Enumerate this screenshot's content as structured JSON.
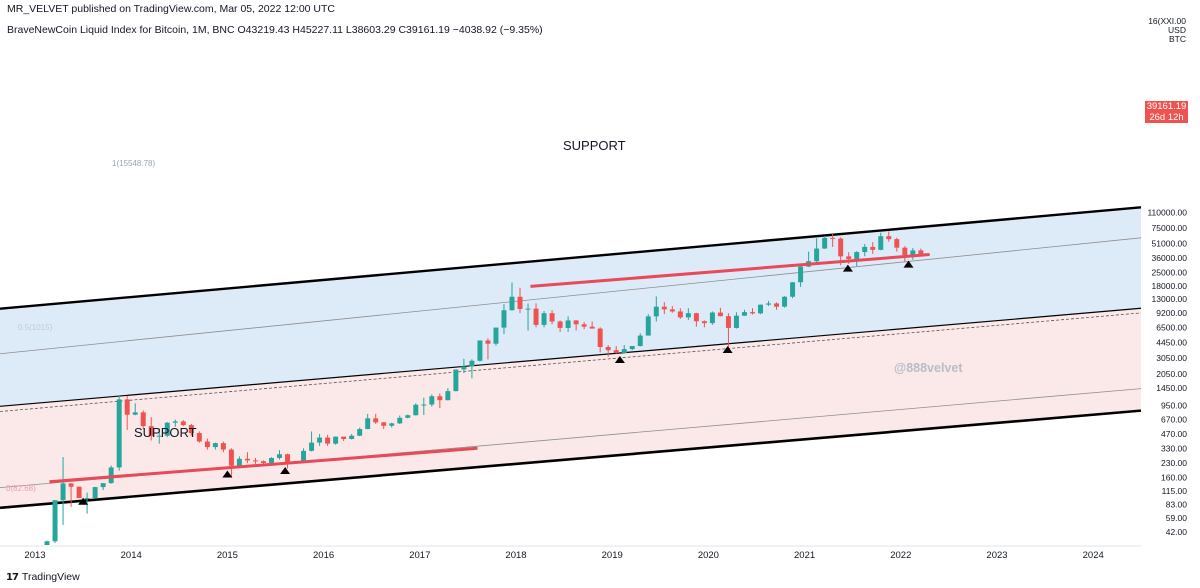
{
  "publisher_line": "MR_VELVET published on TradingView.com, Mar 05, 2022 12:00 UTC",
  "symbol_line": "BraveNewCoin Liquid Index for Bitcoin, 1M, BNC  O43219.43  H45227.11  L38603.29  C39161.19  −4038.92 (−9.35%)",
  "axis_unit": [
    "16(XXI.00",
    "USD",
    "BTC"
  ],
  "price_label": "39161.19",
  "countdown_label": "26d 12h",
  "footer_logo": "TradingView",
  "annotations": {
    "support_upper": "SUPPORT",
    "support_lower": "SUPPORT",
    "watermark": "@888velvet",
    "fib_upper": "1(15548.78)",
    "fib_mid": "0.5(1015)",
    "fib_low": "0(82.68)"
  },
  "colors": {
    "up": "#26a69a",
    "down": "#ef5350",
    "support_line": "#e84a5a",
    "upper_band": "#ddeaf8",
    "lower_band": "#fbe9ea",
    "channel_line": "#000000"
  },
  "chart_data": {
    "type": "candlestick",
    "title": "BraveNewCoin Liquid Index for Bitcoin, 1M, BNC",
    "scale": "log",
    "y_ticks": [
      42,
      59,
      83,
      115,
      160,
      230,
      330,
      470,
      670,
      950,
      1450,
      2050,
      3050,
      4450,
      6500,
      9200,
      13000,
      18000,
      25000,
      36000,
      51000,
      75000,
      110000
    ],
    "y_tick_labels": [
      "42.00",
      "59.00",
      "83.00",
      "115.00",
      "160.00",
      "230.00",
      "330.00",
      "470.00",
      "670.00",
      "950.00",
      "1450.00",
      "2050.00",
      "3050.00",
      "4450.00",
      "6500.00",
      "9200.00",
      "13000.00",
      "18000.00",
      "25000.00",
      "36000.00",
      "51000.00",
      "75000.00",
      "110000.00"
    ],
    "x_labels": [
      "2013",
      "2014",
      "2015",
      "2016",
      "2017",
      "2018",
      "2019",
      "2020",
      "2021",
      "2022",
      "2023",
      "2024"
    ],
    "x_label_years": [
      2013,
      2014,
      2015,
      2016,
      2017,
      2018,
      2019,
      2020,
      2021,
      2022,
      2023,
      2024
    ],
    "candle_start": 2013.0,
    "candles": [
      [
        13.3,
        20.5,
        13.0,
        20.4
      ],
      [
        20.4,
        34.0,
        19.5,
        33.4
      ],
      [
        33.4,
        92.0,
        32.0,
        92.0
      ],
      [
        92.0,
        266.0,
        50.0,
        139.0
      ],
      [
        139.0,
        140.0,
        78.0,
        128.0
      ],
      [
        128.0,
        129.0,
        100.0,
        97.0
      ],
      [
        97.0,
        111.0,
        66.0,
        97.0
      ],
      [
        97.0,
        128.0,
        96.0,
        127.0
      ],
      [
        127.0,
        140.0,
        118.0,
        140.0
      ],
      [
        140.0,
        216.0,
        138.0,
        206.0
      ],
      [
        206.0,
        1200.0,
        190.0,
        1100.0
      ],
      [
        1100.0,
        1200.0,
        520.0,
        755.0
      ],
      [
        755.0,
        1000.0,
        745.0,
        800.0
      ],
      [
        800.0,
        840.0,
        530.0,
        570.0
      ],
      [
        570.0,
        710.0,
        400.0,
        445.0
      ],
      [
        445.0,
        540.0,
        370.0,
        450.0
      ],
      [
        450.0,
        630.0,
        435.0,
        620.0
      ],
      [
        620.0,
        670.0,
        560.0,
        640.0
      ],
      [
        640.0,
        660.0,
        570.0,
        585.0
      ],
      [
        585.0,
        600.0,
        450.0,
        480.0
      ],
      [
        480.0,
        500.0,
        380.0,
        390.0
      ],
      [
        390.0,
        420.0,
        320.0,
        340.0
      ],
      [
        340.0,
        380.0,
        320.0,
        375.0
      ],
      [
        375.0,
        390.0,
        300.0,
        320.0
      ],
      [
        320.0,
        330.0,
        160.0,
        215.0
      ],
      [
        215.0,
        270.0,
        210.0,
        255.0
      ],
      [
        255.0,
        300.0,
        230.0,
        245.0
      ],
      [
        245.0,
        260.0,
        225.0,
        240.0
      ],
      [
        240.0,
        245.0,
        225.0,
        230.0
      ],
      [
        230.0,
        265.0,
        220.0,
        260.0
      ],
      [
        260.0,
        315.0,
        250.0,
        285.0
      ],
      [
        285.0,
        290.0,
        200.0,
        230.0
      ],
      [
        230.0,
        240.0,
        225.0,
        236.0
      ],
      [
        236.0,
        330.0,
        235.0,
        310.0
      ],
      [
        310.0,
        500.0,
        305.0,
        380.0
      ],
      [
        380.0,
        470.0,
        350.0,
        430.0
      ],
      [
        430.0,
        460.0,
        350.0,
        370.0
      ],
      [
        370.0,
        440.0,
        360.0,
        440.0
      ],
      [
        440.0,
        440.0,
        395.0,
        415.0
      ],
      [
        415.0,
        470.0,
        410.0,
        450.0
      ],
      [
        450.0,
        550.0,
        445.0,
        530.0
      ],
      [
        530.0,
        770.0,
        530.0,
        690.0
      ],
      [
        690.0,
        770.0,
        600.0,
        625.0
      ],
      [
        625.0,
        630.0,
        530.0,
        575.0
      ],
      [
        575.0,
        620.0,
        550.0,
        610.0
      ],
      [
        610.0,
        740.0,
        600.0,
        700.0
      ],
      [
        700.0,
        760.0,
        690.0,
        745.0
      ],
      [
        745.0,
        1000.0,
        740.0,
        965.0
      ],
      [
        965.0,
        1150.0,
        750.0,
        970.0
      ],
      [
        970.0,
        1250.0,
        920.0,
        1190.0
      ],
      [
        1190.0,
        1270.0,
        890.0,
        1080.0
      ],
      [
        1080.0,
        1450.0,
        1070.0,
        1350.0
      ],
      [
        1350.0,
        2300.0,
        1340.0,
        2300.0
      ],
      [
        2300.0,
        3000.0,
        2100.0,
        2480.0
      ],
      [
        2480.0,
        2950.0,
        1850.0,
        2850.0
      ],
      [
        2850.0,
        4700.0,
        2800.0,
        4700.0
      ],
      [
        4700.0,
        4950.0,
        2950.0,
        4340.0
      ],
      [
        4340.0,
        6450.0,
        4150.0,
        6450.0
      ],
      [
        6450.0,
        11500.0,
        5500.0,
        9900.0
      ],
      [
        9900.0,
        19600.0,
        9800.0,
        13800.0
      ],
      [
        13800.0,
        17200.0,
        9200.0,
        10200.0
      ],
      [
        10200.0,
        11700.0,
        6000.0,
        10300.0
      ],
      [
        10300.0,
        11700.0,
        6500.0,
        6900.0
      ],
      [
        6900.0,
        9700.0,
        6500.0,
        9200.0
      ],
      [
        9200.0,
        9900.0,
        7000.0,
        7500.0
      ],
      [
        7500.0,
        7700.0,
        5800.0,
        6400.0
      ],
      [
        6400.0,
        8500.0,
        5800.0,
        7700.0
      ],
      [
        7700.0,
        7750.0,
        6000.0,
        7000.0
      ],
      [
        7000.0,
        7400.0,
        6200.0,
        6600.0
      ],
      [
        6600.0,
        7500.0,
        6300.0,
        6300.0
      ],
      [
        6300.0,
        6500.0,
        3500.0,
        4000.0
      ],
      [
        4000.0,
        4200.0,
        3150.0,
        3700.0
      ],
      [
        3700.0,
        4100.0,
        3400.0,
        3450.0
      ],
      [
        3450.0,
        4200.0,
        3400.0,
        3800.0
      ],
      [
        3800.0,
        4100.0,
        3700.0,
        4100.0
      ],
      [
        4100.0,
        5600.0,
        4050.0,
        5300.0
      ],
      [
        5300.0,
        9000.0,
        5300.0,
        8500.0
      ],
      [
        8500.0,
        13900.0,
        7500.0,
        10800.0
      ],
      [
        10800.0,
        12100.0,
        9000.0,
        10100.0
      ],
      [
        10100.0,
        10950.0,
        9300.0,
        9600.0
      ],
      [
        9600.0,
        10400.0,
        8000.0,
        8300.0
      ],
      [
        8300.0,
        10400.0,
        7800.0,
        9200.0
      ],
      [
        9200.0,
        9300.0,
        6600.0,
        7550.0
      ],
      [
        7550.0,
        7700.0,
        6500.0,
        7200.0
      ],
      [
        7200.0,
        9600.0,
        6900.0,
        9350.0
      ],
      [
        9350.0,
        10500.0,
        8500.0,
        8550.0
      ],
      [
        8550.0,
        9200.0,
        3850.0,
        6400.0
      ],
      [
        6400.0,
        9400.0,
        6300.0,
        8650.0
      ],
      [
        8650.0,
        10000.0,
        8600.0,
        9450.0
      ],
      [
        9450.0,
        10400.0,
        8900.0,
        9150.0
      ],
      [
        9150.0,
        11400.0,
        9000.0,
        11350.0
      ],
      [
        11350.0,
        12450.0,
        11000.0,
        11700.0
      ],
      [
        11700.0,
        12000.0,
        10000.0,
        10800.0
      ],
      [
        10800.0,
        14000.0,
        10550.0,
        13800.0
      ],
      [
        13800.0,
        19800.0,
        13300.0,
        19700.0
      ],
      [
        19700.0,
        29300.0,
        17600.0,
        29000.0
      ],
      [
        29000.0,
        41900.0,
        28700.0,
        33100.0
      ],
      [
        33100.0,
        58300.0,
        32300.0,
        45200.0
      ],
      [
        45200.0,
        61600.0,
        44900.0,
        58800.0
      ],
      [
        58800.0,
        64800.0,
        47000.0,
        57700.0
      ],
      [
        57700.0,
        59500.0,
        30000.0,
        37300.0
      ],
      [
        37300.0,
        41300.0,
        31000.0,
        35000.0
      ],
      [
        35000.0,
        42400.0,
        29300.0,
        41500.0
      ],
      [
        41500.0,
        50500.0,
        37400.0,
        47100.0
      ],
      [
        47100.0,
        52900.0,
        39600.0,
        43800.0
      ],
      [
        43800.0,
        66900.0,
        43300.0,
        61300.0
      ],
      [
        61300.0,
        69000.0,
        53500.0,
        57000.0
      ],
      [
        57000.0,
        59100.0,
        42000.0,
        46200.0
      ],
      [
        46200.0,
        47900.0,
        32900.0,
        38500.0
      ],
      [
        38500.0,
        45800.0,
        34300.0,
        43200.0
      ],
      [
        43219.43,
        45227.11,
        38603.29,
        39161.19
      ]
    ],
    "channel": {
      "upper": [
        [
          2013.0,
          11100
        ],
        [
          2023.9,
          110000
        ]
      ],
      "mid_upper": [
        [
          2013.0,
          1000
        ],
        [
          2023.9,
          9200
        ]
      ],
      "mid_dashed": [
        [
          2013.0,
          880
        ],
        [
          2023.9,
          8200
        ]
      ],
      "mid_lower": [
        [
          2013.0,
          135
        ],
        [
          2023.9,
          1270
        ]
      ],
      "lower": [
        [
          2013.0,
          82
        ],
        [
          2023.9,
          740
        ]
      ],
      "top_fib": [
        [
          2013.0,
          3700
        ],
        [
          2023.9,
          51000
        ]
      ]
    },
    "support_lines": [
      [
        [
          2013.15,
          145
        ],
        [
          2017.6,
          330
        ]
      ],
      [
        [
          2018.15,
          17800
        ],
        [
          2022.3,
          39000
        ]
      ]
    ],
    "arrows": [
      [
        2013.5,
        93
      ],
      [
        2015.0,
        182
      ],
      [
        2015.6,
        198
      ],
      [
        2019.08,
        3050
      ],
      [
        2020.2,
        3900
      ],
      [
        2021.45,
        29000
      ],
      [
        2022.08,
        32000
      ]
    ]
  }
}
